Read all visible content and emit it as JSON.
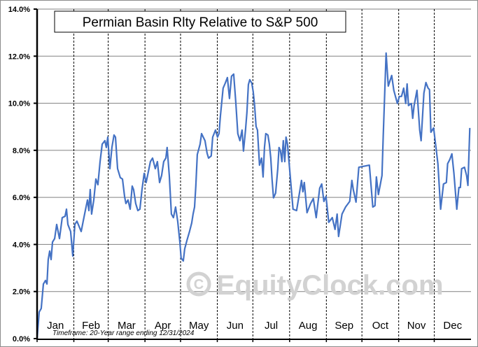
{
  "chart_data": {
    "type": "line",
    "title": "Permian Basin Rlty Relative to S&P 500",
    "xlabel": "",
    "ylabel": "",
    "ylim": [
      0,
      14
    ],
    "xlim": [
      0,
      366
    ],
    "y_ticks": [
      0,
      2,
      4,
      6,
      8,
      10,
      12,
      14
    ],
    "y_tick_labels": [
      "0.0%",
      "2.0%",
      "4.0%",
      "6.0%",
      "8.0%",
      "10.0%",
      "12.0%",
      "14.0%"
    ],
    "months": [
      "Jan",
      "Feb",
      "Mar",
      "Apr",
      "May",
      "Jun",
      "Jul",
      "Aug",
      "Sep",
      "Oct",
      "Nov",
      "Dec"
    ],
    "month_start_days": [
      0,
      31,
      60,
      91,
      121,
      152,
      182,
      213,
      244,
      274,
      305,
      335
    ],
    "grid": "horizontal solid, monthly dashed verticals",
    "timeframe_note": "Timeframe: 20-Year range ending 12/31/2024",
    "watermark": "EquityClock.com",
    "line_color": "#4472c4",
    "series": [
      {
        "name": "Permian Basin Rlty Relative to S&P 500",
        "x": [
          0,
          1.8,
          3.5,
          5.3,
          7.1,
          8.3,
          9.4,
          10.6,
          11.8,
          13,
          14.8,
          16.5,
          18.9,
          21.2,
          23.6,
          24.8,
          26,
          28.3,
          30.1,
          31.9,
          33.6,
          37.2,
          38.9,
          40.7,
          42.5,
          43.7,
          44.8,
          46,
          47.8,
          49.6,
          51.3,
          53.1,
          54.9,
          57.2,
          58.4,
          59.6,
          61.4,
          63.1,
          64.9,
          66.1,
          67.9,
          70.2,
          72,
          73.8,
          74.9,
          76.7,
          78.5,
          80.2,
          81.4,
          83.2,
          85,
          86.7,
          88.5,
          90.3,
          92,
          93.8,
          95.6,
          97.4,
          99.7,
          101.5,
          103.3,
          105,
          106.8,
          108.6,
          109.7,
          111.5,
          113.3,
          115,
          116.8,
          118.6,
          120.4,
          121.5,
          123.3,
          124.5,
          126.3,
          128.6,
          130.4,
          131.6,
          132.8,
          133.9,
          135.1,
          137.5,
          138.7,
          141.6,
          143.4,
          144.6,
          146.9,
          148.1,
          150.5,
          152.2,
          153.4,
          154.6,
          156.9,
          158.7,
          160.5,
          162.3,
          164,
          165.8,
          167.6,
          169.3,
          171.1,
          172.9,
          174.1,
          175.8,
          177,
          178.2,
          179.4,
          181.1,
          182.3,
          183.5,
          184.7,
          185.9,
          187.6,
          189.4,
          190.6,
          191.8,
          192.9,
          194.7,
          195.9,
          197.1,
          198.2,
          199.4,
          201.2,
          203,
          204.1,
          205.3,
          206.5,
          207.7,
          208.9,
          210,
          211.2,
          213,
          215.9,
          218.9,
          223,
          224.2,
          225.4,
          227.7,
          230.7,
          233,
          235.4,
          238.4,
          240.1,
          241.9,
          243.7,
          246,
          249,
          251.3,
          253.1,
          254.3,
          257.2,
          260.2,
          263.7,
          265.5,
          266.7,
          269,
          271.4,
          274.4,
          280.3,
          283.2,
          285,
          286.2,
          287.9,
          290.9,
          292,
          294.4,
          296.2,
          299.1,
          300.9,
          303.9,
          305.6,
          307.4,
          309.2,
          310.9,
          312.1,
          313.3,
          315.7,
          316.8,
          318,
          320.4,
          322.7,
          323.9,
          326.3,
          328,
          329.8,
          331,
          332.2,
          334.5,
          338.1,
          340.4,
          342.8,
          345.2,
          346.3,
          348.1,
          349.9,
          351.6,
          354,
          355.8,
          357,
          358.1,
          360.5,
          362.3,
          363.4,
          365
        ],
        "y": [
          0,
          1.13,
          1.28,
          2.32,
          2.47,
          2.32,
          3.36,
          3.72,
          3.36,
          4.1,
          4.25,
          4.85,
          4.25,
          5.14,
          5.2,
          5.5,
          4.85,
          4.55,
          3.51,
          4.85,
          4.99,
          4.55,
          4.99,
          5.44,
          5.89,
          5.44,
          6.33,
          5.29,
          5.89,
          6.78,
          6.54,
          7.52,
          8.26,
          8.41,
          8.12,
          8.56,
          7.22,
          8.12,
          8.65,
          8.56,
          7.22,
          6.84,
          6.78,
          6.04,
          5.74,
          5.89,
          5.5,
          6.48,
          6.33,
          5.74,
          5.44,
          5.5,
          6.33,
          7.02,
          6.63,
          7.08,
          7.52,
          7.67,
          7.22,
          7.52,
          6.63,
          6.93,
          7.52,
          7.67,
          8.12,
          6.93,
          5.29,
          5.14,
          5.59,
          4.99,
          4.1,
          3.42,
          3.3,
          3.81,
          4.16,
          4.55,
          4.91,
          5.29,
          5.59,
          6.48,
          7.82,
          8.26,
          8.71,
          8.41,
          7.88,
          7.67,
          7.76,
          8.56,
          8.86,
          8.56,
          8.71,
          9.45,
          10.64,
          10.85,
          11.09,
          10.2,
          11.15,
          11.24,
          10.05,
          8.71,
          8.41,
          8.86,
          7.97,
          8.86,
          9.6,
          10.79,
          11.0,
          10.85,
          10.49,
          9.9,
          9.01,
          8.86,
          7.37,
          7.67,
          6.87,
          8.12,
          8.71,
          8.65,
          8.26,
          7.67,
          6.78,
          5.98,
          6.18,
          7.22,
          8.12,
          7.97,
          7.52,
          8.41,
          7.52,
          8.56,
          8.26,
          7.22,
          5.5,
          5.44,
          6.72,
          6.24,
          6.63,
          5.35,
          5.74,
          5.95,
          5.14,
          6.39,
          6.57,
          5.83,
          6.04,
          4.94,
          5.14,
          4.64,
          5.29,
          4.34,
          5.29,
          5.59,
          5.83,
          6.72,
          6.33,
          5.8,
          7.28,
          7.31,
          7.37,
          5.59,
          5.65,
          6.87,
          6.12,
          6.93,
          8.62,
          12.13,
          10.73,
          11.18,
          10.55,
          9.99,
          10.29,
          10.29,
          10.64,
          9.99,
          10.82,
          9.9,
          9.99,
          9.36,
          9.9,
          10.55,
          8.86,
          8.41,
          10.43,
          10.88,
          10.64,
          10.58,
          8.77,
          8.95,
          7.43,
          5.5,
          6.57,
          6.63,
          7.43,
          7.61,
          7.85,
          7.02,
          5.5,
          6.42,
          6.42,
          7.22,
          7.28,
          6.93,
          6.51,
          8.95
        ]
      }
    ]
  }
}
